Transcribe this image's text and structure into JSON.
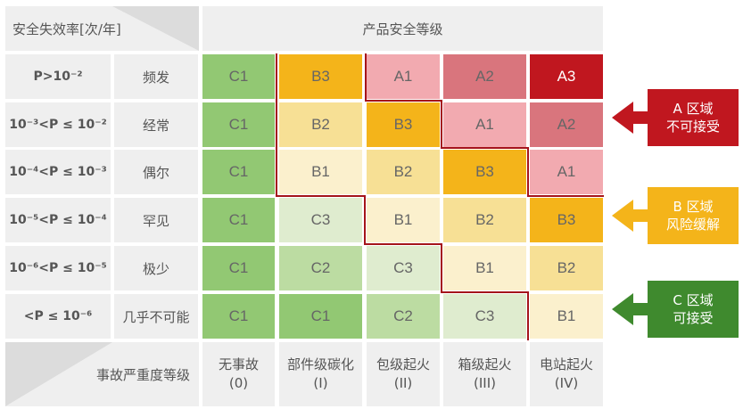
{
  "header": {
    "corner_label": "安全失效率[次/年]",
    "top_title": "产品安全等级",
    "bottom_corner_label": "事故严重度等级"
  },
  "rows": [
    {
      "prob": "P>10⁻²",
      "freq": "频发",
      "cells": [
        "C1",
        "B3",
        "A1",
        "A2",
        "A3"
      ]
    },
    {
      "prob": "10⁻³<P ≤ 10⁻²",
      "freq": "经常",
      "cells": [
        "C1",
        "B2",
        "B3",
        "A1",
        "A2"
      ]
    },
    {
      "prob": "10⁻⁴<P ≤ 10⁻³",
      "freq": "偶尔",
      "cells": [
        "C1",
        "B1",
        "B2",
        "B3",
        "A1"
      ]
    },
    {
      "prob": "10⁻⁵<P ≤ 10⁻⁴",
      "freq": "罕见",
      "cells": [
        "C1",
        "C3",
        "B1",
        "B2",
        "B3"
      ]
    },
    {
      "prob": "10⁻⁶<P ≤ 10⁻⁵",
      "freq": "极少",
      "cells": [
        "C1",
        "C2",
        "C3",
        "B1",
        "B2"
      ]
    },
    {
      "prob": "<P ≤ 10⁻⁶",
      "freq": "几乎不可能",
      "cells": [
        "C1",
        "C1",
        "C2",
        "C3",
        "B1"
      ]
    }
  ],
  "severity": [
    {
      "name": "无事故",
      "code": "(0)"
    },
    {
      "name": "部件级碳化",
      "code": "(I)"
    },
    {
      "name": "包级起火",
      "code": "(II)"
    },
    {
      "name": "箱级起火",
      "code": "(III)"
    },
    {
      "name": "电站起火",
      "code": "(IV)"
    }
  ],
  "legend": [
    {
      "title": "A 区域",
      "desc": "不可接受",
      "color": "#c0171f"
    },
    {
      "title": "B 区域",
      "desc": "风险缓解",
      "color": "#f4b41a"
    },
    {
      "title": "C 区域",
      "desc": "可接受",
      "color": "#3f8a2e"
    }
  ],
  "level_colors": {
    "A3": "#c0171f",
    "A2": "#d9757d",
    "A1": "#f2aab0",
    "B3": "#f4b41a",
    "B2": "#f7e095",
    "B1": "#fbf0cd",
    "C3": "#dfeccf",
    "C2": "#bcdca2",
    "C1": "#92c873"
  },
  "boundary_color": "#a5141b"
}
